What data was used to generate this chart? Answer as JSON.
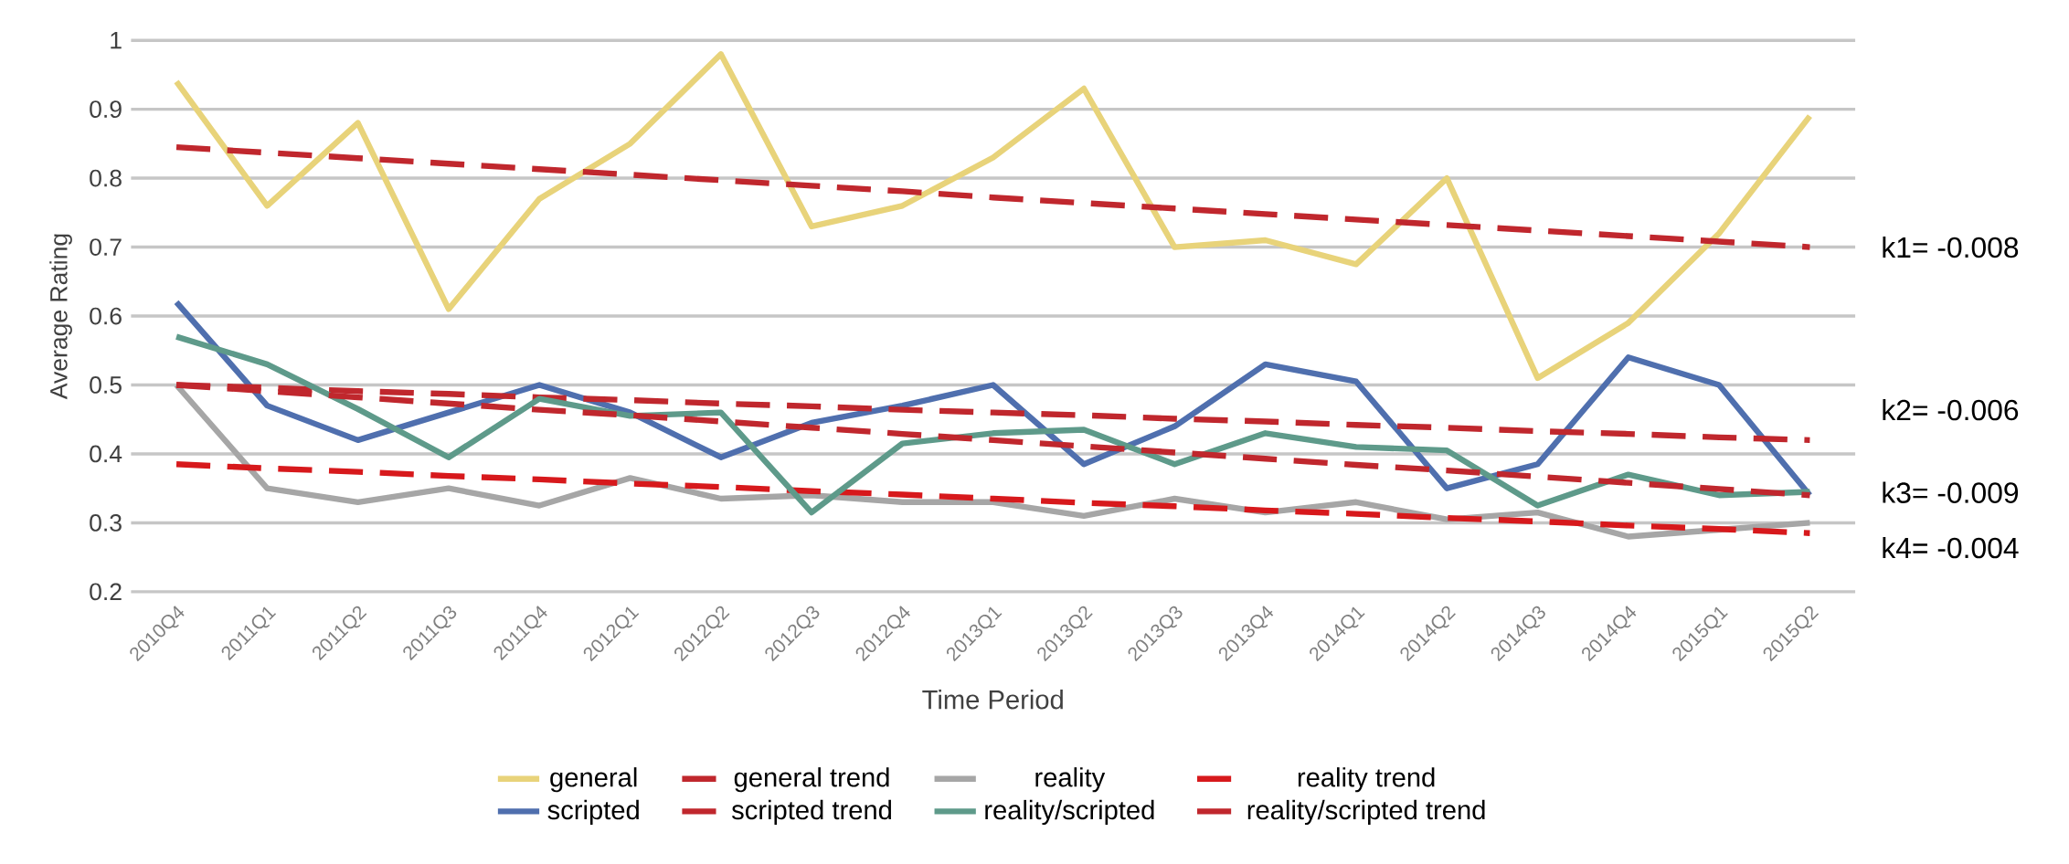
{
  "chart_data": {
    "type": "line",
    "xlabel": "Time Period",
    "ylabel": "Average Rating",
    "categories": [
      "2010Q4",
      "2011Q1",
      "2011Q2",
      "2011Q3",
      "2011Q4",
      "2012Q1",
      "2012Q2",
      "2012Q3",
      "2012Q4",
      "2013Q1",
      "2013Q2",
      "2013Q3",
      "2013Q4",
      "2014Q1",
      "2014Q2",
      "2014Q3",
      "2014Q4",
      "2015Q1",
      "2015Q2"
    ],
    "series": [
      {
        "name": "general",
        "color": "#e8d37a",
        "values": [
          0.94,
          0.76,
          0.88,
          0.61,
          0.77,
          0.85,
          0.98,
          0.73,
          0.76,
          0.83,
          0.93,
          0.7,
          0.71,
          0.675,
          0.8,
          0.51,
          0.59,
          0.72,
          0.89
        ]
      },
      {
        "name": "general trend",
        "color": "#c0272d",
        "line_style": "dashed",
        "values": [
          0.845,
          0.837,
          0.829,
          0.821,
          0.813,
          0.805,
          0.797,
          0.789,
          0.781,
          0.772,
          0.764,
          0.756,
          0.748,
          0.74,
          0.732,
          0.724,
          0.716,
          0.708,
          0.7
        ]
      },
      {
        "name": "reality",
        "color": "#a6a6a6",
        "values": [
          0.5,
          0.35,
          0.33,
          0.35,
          0.325,
          0.365,
          0.335,
          0.34,
          0.33,
          0.33,
          0.31,
          0.335,
          0.315,
          0.33,
          0.305,
          0.315,
          0.28,
          0.29,
          0.3
        ]
      },
      {
        "name": "reality trend",
        "color": "#d7191c",
        "line_style": "dashed",
        "values": [
          0.385,
          0.379,
          0.374,
          0.368,
          0.363,
          0.357,
          0.352,
          0.346,
          0.341,
          0.335,
          0.329,
          0.324,
          0.318,
          0.313,
          0.307,
          0.302,
          0.296,
          0.291,
          0.285
        ]
      },
      {
        "name": "scripted",
        "color": "#4f6fae",
        "values": [
          0.62,
          0.47,
          0.42,
          0.46,
          0.5,
          0.46,
          0.395,
          0.445,
          0.47,
          0.5,
          0.385,
          0.44,
          0.53,
          0.505,
          0.35,
          0.385,
          0.54,
          0.5,
          0.34
        ]
      },
      {
        "name": "scripted trend",
        "color": "#c0272d",
        "line_style": "dashed",
        "values": [
          0.5,
          0.496,
          0.491,
          0.487,
          0.482,
          0.478,
          0.473,
          0.469,
          0.464,
          0.46,
          0.456,
          0.451,
          0.447,
          0.442,
          0.438,
          0.433,
          0.429,
          0.424,
          0.42
        ]
      },
      {
        "name": "reality/scripted",
        "color": "#5e9a8a",
        "values": [
          0.57,
          0.53,
          0.465,
          0.395,
          0.48,
          0.455,
          0.46,
          0.315,
          0.415,
          0.43,
          0.435,
          0.385,
          0.43,
          0.41,
          0.405,
          0.325,
          0.37,
          0.34,
          0.345
        ]
      },
      {
        "name": "reality/scripted trend",
        "color": "#c0272d",
        "line_style": "dashed",
        "values": [
          0.5,
          0.491,
          0.482,
          0.473,
          0.464,
          0.456,
          0.447,
          0.438,
          0.429,
          0.42,
          0.411,
          0.402,
          0.393,
          0.384,
          0.376,
          0.367,
          0.358,
          0.349,
          0.34
        ]
      }
    ],
    "ylim": [
      0.2,
      1
    ],
    "yticks": [
      0.2,
      0.3,
      0.4,
      0.5,
      0.6,
      0.7,
      0.8,
      0.9,
      1
    ],
    "grid": "y",
    "legend": "bottom",
    "marker": "none",
    "annotations": [
      "k1= -0.008",
      "k2= -0.006",
      "k3= -0.009",
      "k4= -0.004"
    ]
  }
}
